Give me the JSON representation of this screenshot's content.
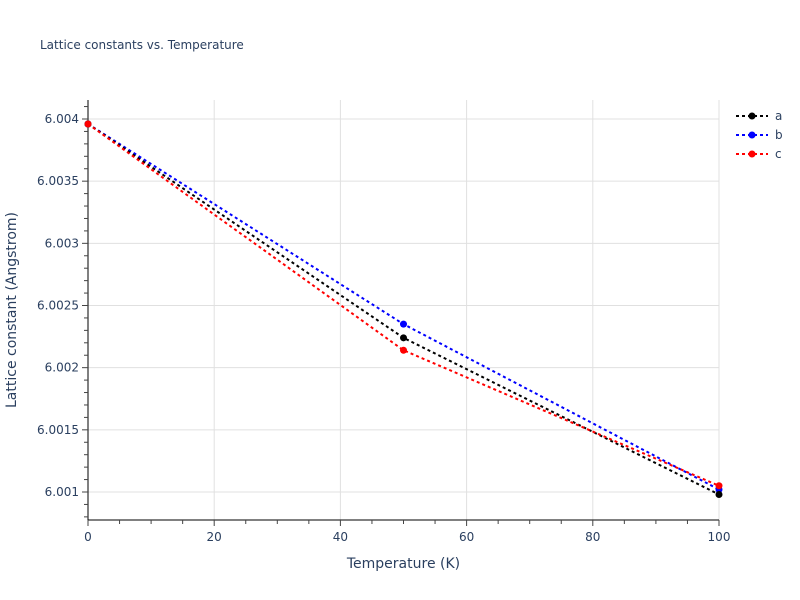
{
  "chart_data": {
    "type": "line",
    "title": "Lattice constants vs. Temperature",
    "xlabel": "Temperature (K)",
    "ylabel": "Lattice constant (Angstrom)",
    "x": [
      0,
      50,
      100
    ],
    "xlim": [
      0,
      100
    ],
    "ylim": [
      6.00078,
      6.00415
    ],
    "x_ticks": [
      "0",
      "20",
      "40",
      "60",
      "80",
      "100"
    ],
    "y_ticks": [
      "6.001",
      "6.0015",
      "6.002",
      "6.0025",
      "6.003",
      "6.0035",
      "6.004"
    ],
    "grid": true,
    "legend_position": "top-right",
    "series": [
      {
        "name": "a",
        "color": "#000000",
        "values": [
          6.00396,
          6.00224,
          6.00098
        ]
      },
      {
        "name": "b",
        "color": "#0000ff",
        "values": [
          6.00396,
          6.00235,
          6.00102
        ]
      },
      {
        "name": "c",
        "color": "#ff0000",
        "values": [
          6.00396,
          6.00214,
          6.00105
        ]
      }
    ]
  },
  "legend": {
    "items": [
      {
        "label": "a",
        "color": "#000000"
      },
      {
        "label": "b",
        "color": "#0000ff"
      },
      {
        "label": "c",
        "color": "#ff0000"
      }
    ]
  }
}
